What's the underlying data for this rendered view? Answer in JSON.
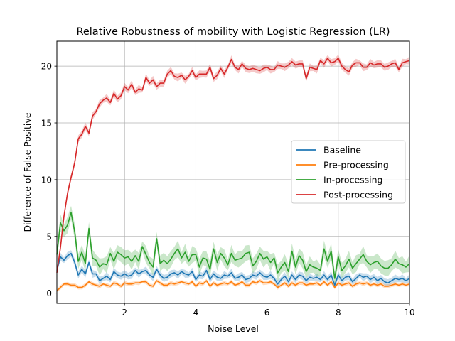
{
  "chart_data": {
    "type": "line",
    "title": "Relative Robustness of mobility with Logistic Regression (LR)",
    "xlabel": "Noise Level",
    "ylabel": "Difference of False Positive",
    "xlim": [
      0.1,
      10
    ],
    "ylim": [
      -0.9,
      22.2
    ],
    "xticks": [
      2,
      4,
      6,
      8,
      10
    ],
    "yticks": [
      0,
      5,
      10,
      15,
      20
    ],
    "grid": true,
    "legend_position": "center-right",
    "x": [
      0.1,
      0.2,
      0.3,
      0.4,
      0.5,
      0.6,
      0.7,
      0.8,
      0.9,
      1.0,
      1.1,
      1.2,
      1.3,
      1.4,
      1.5,
      1.6,
      1.7,
      1.8,
      1.9,
      2.0,
      2.1,
      2.2,
      2.3,
      2.4,
      2.5,
      2.6,
      2.7,
      2.8,
      2.9,
      3.0,
      3.1,
      3.2,
      3.3,
      3.4,
      3.5,
      3.6,
      3.7,
      3.8,
      3.9,
      4.0,
      4.1,
      4.2,
      4.3,
      4.4,
      4.5,
      4.6,
      4.7,
      4.8,
      4.9,
      5.0,
      5.1,
      5.2,
      5.3,
      5.4,
      5.5,
      5.6,
      5.7,
      5.8,
      5.9,
      6.0,
      6.1,
      6.2,
      6.3,
      6.4,
      6.5,
      6.6,
      6.7,
      6.8,
      6.9,
      7.0,
      7.1,
      7.2,
      7.3,
      7.4,
      7.5,
      7.6,
      7.7,
      7.8,
      7.9,
      8.0,
      8.1,
      8.2,
      8.3,
      8.4,
      8.5,
      8.6,
      8.7,
      8.8,
      8.9,
      9.0,
      9.1,
      9.2,
      9.3,
      9.4,
      9.5,
      9.6,
      9.7,
      9.8,
      9.9,
      10.0
    ],
    "series": [
      {
        "name": "Baseline",
        "color": "#1f77b4",
        "band": 0.35,
        "values": [
          2.0,
          3.2,
          2.9,
          3.3,
          3.5,
          2.7,
          1.6,
          2.1,
          1.7,
          2.7,
          1.7,
          1.7,
          1.1,
          1.3,
          1.5,
          1.2,
          1.9,
          1.6,
          1.5,
          1.7,
          1.5,
          1.6,
          2.0,
          1.7,
          1.9,
          2.0,
          1.6,
          1.4,
          2.1,
          1.6,
          1.3,
          1.4,
          1.7,
          1.8,
          1.6,
          1.9,
          1.7,
          1.6,
          1.9,
          1.2,
          1.6,
          1.5,
          2.0,
          1.2,
          1.7,
          1.4,
          1.3,
          1.6,
          1.5,
          1.8,
          1.3,
          1.4,
          1.6,
          1.2,
          1.3,
          1.6,
          1.5,
          1.8,
          1.5,
          1.4,
          1.6,
          1.3,
          0.8,
          1.2,
          1.5,
          1.0,
          1.6,
          1.2,
          1.6,
          1.5,
          1.1,
          1.4,
          1.3,
          1.4,
          1.2,
          1.6,
          1.2,
          1.6,
          0.7,
          1.6,
          1.1,
          1.4,
          1.5,
          1.0,
          1.3,
          1.6,
          1.4,
          1.5,
          1.2,
          1.4,
          1.1,
          1.3,
          1.0,
          0.9,
          1.1,
          1.3,
          1.2,
          1.3,
          1.1,
          1.3
        ]
      },
      {
        "name": "Pre-processing",
        "color": "#ff7f0e",
        "band": 0.2,
        "values": [
          0.2,
          0.5,
          0.8,
          0.8,
          0.7,
          0.7,
          0.5,
          0.5,
          0.7,
          1.0,
          0.8,
          0.7,
          0.6,
          0.8,
          0.7,
          0.6,
          0.9,
          0.8,
          0.6,
          0.9,
          0.8,
          0.8,
          0.9,
          0.9,
          1.0,
          1.0,
          0.7,
          0.6,
          1.1,
          0.9,
          0.7,
          0.7,
          0.9,
          0.8,
          0.9,
          1.0,
          0.9,
          0.8,
          1.0,
          0.6,
          0.9,
          0.8,
          1.1,
          0.6,
          0.9,
          0.7,
          0.8,
          0.9,
          0.8,
          1.0,
          0.7,
          0.8,
          1.0,
          0.7,
          0.7,
          1.0,
          0.9,
          1.1,
          0.9,
          0.9,
          1.0,
          0.8,
          0.5,
          0.7,
          0.9,
          0.6,
          0.9,
          0.7,
          0.9,
          0.9,
          0.7,
          0.8,
          0.8,
          0.9,
          0.7,
          1.0,
          0.7,
          1.0,
          0.5,
          0.9,
          0.7,
          0.8,
          0.9,
          0.6,
          0.8,
          0.9,
          0.8,
          0.9,
          0.7,
          0.8,
          0.7,
          0.8,
          0.6,
          0.6,
          0.7,
          0.8,
          0.7,
          0.8,
          0.7,
          0.8
        ]
      },
      {
        "name": "In-processing",
        "color": "#2ca02c",
        "band": 0.75,
        "values": [
          3.4,
          6.2,
          5.5,
          6.0,
          7.1,
          5.4,
          2.8,
          3.6,
          2.6,
          5.7,
          3.1,
          2.9,
          2.3,
          2.6,
          2.5,
          3.5,
          2.8,
          3.6,
          3.4,
          3.1,
          3.2,
          2.8,
          3.3,
          2.8,
          4.1,
          3.4,
          2.7,
          2.3,
          4.8,
          2.6,
          2.9,
          2.6,
          3.0,
          3.5,
          3.9,
          3.1,
          3.6,
          2.8,
          3.4,
          3.4,
          2.3,
          3.1,
          3.0,
          2.1,
          3.9,
          2.7,
          3.5,
          3.1,
          2.5,
          3.5,
          2.9,
          3.0,
          3.1,
          3.5,
          3.6,
          2.4,
          2.8,
          3.5,
          3.0,
          3.2,
          2.7,
          3.1,
          1.8,
          2.3,
          2.7,
          1.9,
          3.7,
          2.3,
          3.3,
          2.9,
          1.9,
          2.5,
          2.3,
          2.2,
          2.0,
          3.9,
          2.8,
          3.7,
          1.3,
          3.2,
          2.0,
          2.4,
          3.0,
          2.2,
          2.6,
          3.0,
          3.4,
          2.8,
          2.5,
          2.7,
          2.8,
          2.4,
          2.2,
          2.2,
          2.5,
          3.0,
          2.6,
          2.5,
          2.3,
          2.6
        ]
      },
      {
        "name": "Post-processing",
        "color": "#d62728",
        "band": 0.35,
        "values": [
          1.8,
          4.0,
          6.8,
          8.8,
          10.2,
          11.5,
          13.6,
          14.0,
          14.7,
          14.1,
          15.6,
          16.0,
          16.7,
          17.0,
          17.2,
          16.8,
          17.6,
          17.1,
          17.4,
          18.2,
          17.9,
          18.4,
          17.7,
          18.0,
          17.9,
          19.0,
          18.5,
          18.8,
          18.2,
          18.5,
          18.5,
          19.3,
          19.6,
          19.1,
          19.0,
          19.2,
          18.8,
          19.1,
          19.6,
          19.0,
          19.3,
          19.3,
          19.3,
          19.9,
          18.9,
          19.2,
          19.8,
          19.3,
          19.9,
          20.6,
          19.9,
          19.7,
          20.2,
          19.8,
          19.7,
          19.8,
          19.7,
          19.6,
          19.8,
          19.9,
          19.7,
          19.7,
          20.1,
          20.0,
          19.9,
          20.1,
          20.4,
          20.1,
          20.2,
          20.2,
          18.9,
          19.9,
          19.8,
          19.7,
          20.5,
          20.2,
          20.7,
          20.3,
          20.4,
          20.7,
          20.0,
          19.7,
          19.5,
          20.1,
          20.3,
          20.3,
          19.9,
          19.9,
          20.3,
          20.1,
          20.2,
          20.2,
          19.9,
          20.0,
          20.2,
          20.3,
          19.7,
          20.3,
          20.4,
          20.5
        ]
      }
    ]
  }
}
